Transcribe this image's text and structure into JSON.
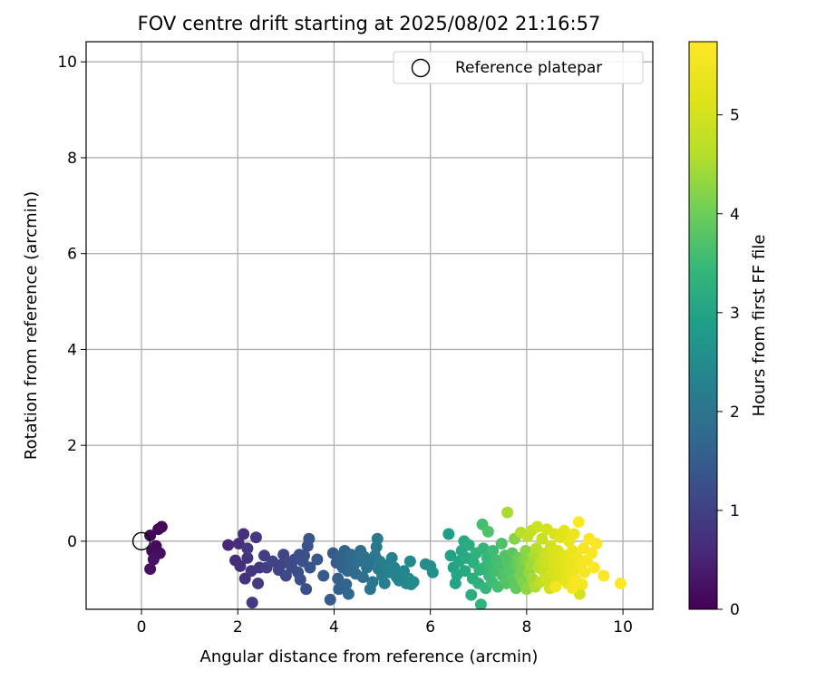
{
  "chart_data": {
    "type": "scatter",
    "title": "FOV centre drift starting at 2025/08/02 21:16:57",
    "xlabel": "Angular distance from reference (arcmin)",
    "ylabel": "Rotation from reference (arcmin)",
    "xlim": [
      -1.15,
      10.62
    ],
    "ylim": [
      -1.42,
      10.42
    ],
    "xticks": [
      0,
      2,
      4,
      6,
      8,
      10
    ],
    "yticks": [
      0,
      2,
      4,
      6,
      8,
      10
    ],
    "grid": true,
    "legend": {
      "position": "top-right",
      "entries": [
        "Reference platepar"
      ]
    },
    "reference_point": {
      "name": "Reference platepar",
      "x": 0,
      "y": 0,
      "marker": "hollow-circle"
    },
    "colorbar": {
      "label": "Hours from first FF file",
      "colormap": "viridis",
      "range": [
        0,
        5.74
      ],
      "ticks": [
        0,
        1,
        2,
        3,
        4,
        5
      ]
    },
    "series": [
      {
        "points": [
          [
            0.18,
            0.12,
            0.05
          ],
          [
            0.42,
            0.3,
            0.08
          ],
          [
            0.35,
            0.25,
            0.1
          ],
          [
            0.3,
            -0.1,
            0.13
          ],
          [
            0.22,
            -0.2,
            0.15
          ],
          [
            0.28,
            -0.3,
            0.18
          ],
          [
            0.38,
            -0.25,
            0.2
          ],
          [
            0.18,
            -0.58,
            0.22
          ],
          [
            0.25,
            -0.38,
            0.25
          ],
          [
            1.8,
            -0.08,
            0.6
          ],
          [
            1.95,
            -0.4,
            0.65
          ],
          [
            2.02,
            -0.05,
            0.68
          ],
          [
            2.12,
            0.15,
            0.7
          ],
          [
            2.05,
            -0.52,
            0.72
          ],
          [
            2.15,
            -0.78,
            0.75
          ],
          [
            2.2,
            -0.35,
            0.78
          ],
          [
            2.28,
            -0.62,
            0.8
          ],
          [
            2.38,
            0.08,
            0.82
          ],
          [
            2.45,
            -0.55,
            0.85
          ],
          [
            2.3,
            -1.28,
            0.9
          ],
          [
            2.42,
            -0.88,
            0.88
          ],
          [
            2.2,
            -0.15,
            0.87
          ],
          [
            2.55,
            -0.3,
            0.95
          ],
          [
            2.6,
            -0.55,
            1.0
          ],
          [
            2.72,
            -0.42,
            1.05
          ],
          [
            2.85,
            -0.6,
            1.08
          ],
          [
            2.95,
            -0.28,
            1.1
          ],
          [
            3.0,
            -0.72,
            1.12
          ],
          [
            3.05,
            -0.45,
            1.15
          ],
          [
            3.12,
            -0.55,
            1.18
          ],
          [
            3.18,
            -0.38,
            1.2
          ],
          [
            3.25,
            -0.65,
            1.22
          ],
          [
            3.3,
            -0.8,
            1.25
          ],
          [
            3.35,
            -0.42,
            1.27
          ],
          [
            3.38,
            -0.3,
            1.3
          ],
          [
            3.45,
            -0.1,
            1.32
          ],
          [
            3.5,
            -0.55,
            1.35
          ],
          [
            3.48,
            0.05,
            1.38
          ],
          [
            3.42,
            -1.0,
            1.28
          ],
          [
            3.28,
            -0.28,
            1.24
          ],
          [
            2.88,
            -0.5,
            1.06
          ],
          [
            3.65,
            -0.38,
            1.4
          ],
          [
            3.78,
            -0.72,
            1.45
          ],
          [
            3.92,
            -1.22,
            1.48
          ],
          [
            3.98,
            -0.25,
            1.5
          ],
          [
            4.05,
            -0.45,
            1.52
          ],
          [
            4.08,
            -0.78,
            1.55
          ],
          [
            4.1,
            -1.0,
            1.58
          ],
          [
            4.15,
            -0.32,
            1.6
          ],
          [
            4.18,
            -0.55,
            1.62
          ],
          [
            4.22,
            -0.2,
            1.65
          ],
          [
            4.25,
            -0.9,
            1.67
          ],
          [
            4.28,
            -0.62,
            1.7
          ],
          [
            4.3,
            -1.1,
            1.72
          ],
          [
            4.32,
            -0.38,
            1.75
          ],
          [
            4.35,
            -0.28,
            1.78
          ],
          [
            4.4,
            -0.52,
            1.8
          ],
          [
            4.45,
            -0.68,
            1.82
          ],
          [
            4.5,
            -0.42,
            1.85
          ],
          [
            4.55,
            -0.2,
            1.87
          ],
          [
            4.6,
            -0.75,
            1.9
          ],
          [
            4.62,
            -0.32,
            1.92
          ],
          [
            4.68,
            -0.55,
            1.95
          ],
          [
            4.72,
            -0.45,
            1.97
          ],
          [
            4.75,
            -1.0,
            2.0
          ],
          [
            4.8,
            -0.85,
            2.02
          ],
          [
            4.85,
            -0.3,
            2.05
          ],
          [
            4.88,
            -0.12,
            2.07
          ],
          [
            4.9,
            0.05,
            2.1
          ],
          [
            4.92,
            -0.58,
            2.12
          ],
          [
            4.95,
            -0.42,
            2.15
          ],
          [
            5.0,
            -0.72,
            2.18
          ],
          [
            5.05,
            -0.88,
            2.2
          ],
          [
            5.1,
            -0.5,
            2.22
          ],
          [
            5.15,
            -0.65,
            2.25
          ],
          [
            5.2,
            -0.35,
            2.27
          ],
          [
            5.25,
            -0.55,
            2.3
          ],
          [
            5.3,
            -0.75,
            2.32
          ],
          [
            5.35,
            -0.82,
            2.35
          ],
          [
            5.45,
            -0.62,
            2.38
          ],
          [
            5.5,
            -0.88,
            2.4
          ],
          [
            5.55,
            -0.78,
            2.42
          ],
          [
            5.6,
            -0.9,
            2.45
          ],
          [
            5.65,
            -0.85,
            2.48
          ],
          [
            5.58,
            -0.42,
            2.43
          ],
          [
            5.9,
            -0.48,
            2.5
          ],
          [
            6.0,
            -0.52,
            2.55
          ],
          [
            6.05,
            -0.65,
            2.58
          ],
          [
            6.38,
            0.15,
            2.9
          ],
          [
            6.42,
            -0.3,
            2.95
          ],
          [
            6.48,
            -0.55,
            2.98
          ],
          [
            6.52,
            -0.88,
            3.0
          ],
          [
            6.55,
            -0.7,
            3.02
          ],
          [
            6.6,
            -0.42,
            3.05
          ],
          [
            6.65,
            -0.2,
            3.08
          ],
          [
            6.7,
            0.0,
            3.1
          ],
          [
            6.72,
            -0.62,
            3.12
          ],
          [
            6.75,
            -0.35,
            3.15
          ],
          [
            6.8,
            -0.08,
            3.18
          ],
          [
            6.85,
            -1.12,
            3.2
          ],
          [
            6.88,
            -0.78,
            3.22
          ],
          [
            6.9,
            -0.45,
            3.25
          ],
          [
            6.95,
            -0.25,
            3.28
          ],
          [
            7.0,
            -0.88,
            3.3
          ],
          [
            7.02,
            -0.6,
            3.32
          ],
          [
            7.05,
            -1.32,
            3.35
          ],
          [
            7.08,
            0.35,
            3.6
          ],
          [
            7.1,
            -0.15,
            3.38
          ],
          [
            7.12,
            -0.55,
            3.4
          ],
          [
            7.15,
            -0.98,
            3.42
          ],
          [
            7.18,
            -0.35,
            3.45
          ],
          [
            7.2,
            0.2,
            3.7
          ],
          [
            7.22,
            -0.72,
            3.47
          ],
          [
            7.25,
            -0.52,
            3.5
          ],
          [
            7.28,
            -0.85,
            3.52
          ],
          [
            7.3,
            -0.2,
            3.55
          ],
          [
            7.35,
            -0.62,
            3.58
          ],
          [
            7.38,
            -0.4,
            3.6
          ],
          [
            7.4,
            -0.95,
            3.62
          ],
          [
            7.45,
            -0.55,
            3.65
          ],
          [
            7.48,
            -0.05,
            3.68
          ],
          [
            7.5,
            -0.72,
            3.7
          ],
          [
            7.55,
            -0.3,
            3.72
          ],
          [
            7.58,
            -0.88,
            3.75
          ],
          [
            7.6,
            0.6,
            4.5
          ],
          [
            7.62,
            -0.45,
            3.78
          ],
          [
            7.65,
            -0.6,
            3.8
          ],
          [
            7.7,
            -0.25,
            3.82
          ],
          [
            7.72,
            -0.8,
            3.85
          ],
          [
            7.75,
            0.05,
            4.2
          ],
          [
            7.78,
            -0.98,
            3.9
          ],
          [
            7.8,
            -0.5,
            3.95
          ],
          [
            7.82,
            -0.35,
            4.0
          ],
          [
            7.85,
            -0.72,
            4.05
          ],
          [
            7.88,
            0.18,
            4.6
          ],
          [
            7.9,
            -0.55,
            4.1
          ],
          [
            7.92,
            -0.85,
            4.15
          ],
          [
            7.95,
            -0.4,
            4.2
          ],
          [
            7.98,
            -0.2,
            4.25
          ],
          [
            8.0,
            -1.0,
            4.3
          ],
          [
            8.02,
            0.1,
            4.7
          ],
          [
            8.05,
            -0.65,
            4.35
          ],
          [
            8.08,
            -0.48,
            4.4
          ],
          [
            8.1,
            0.22,
            4.8
          ],
          [
            8.12,
            -0.78,
            4.45
          ],
          [
            8.15,
            -0.3,
            4.5
          ],
          [
            8.18,
            -0.95,
            4.55
          ],
          [
            8.2,
            -0.15,
            4.6
          ],
          [
            8.22,
            0.3,
            4.9
          ],
          [
            8.25,
            -0.55,
            4.65
          ],
          [
            8.28,
            -0.85,
            4.7
          ],
          [
            8.3,
            -0.4,
            4.75
          ],
          [
            8.32,
            0.05,
            4.85
          ],
          [
            8.35,
            -0.62,
            4.8
          ],
          [
            8.38,
            -0.25,
            4.88
          ],
          [
            8.4,
            -0.8,
            4.9
          ],
          [
            8.42,
            0.25,
            5.0
          ],
          [
            8.45,
            -0.45,
            4.95
          ],
          [
            8.48,
            -0.98,
            4.97
          ],
          [
            8.5,
            -0.1,
            5.0
          ],
          [
            8.52,
            -0.68,
            5.02
          ],
          [
            8.55,
            -0.32,
            5.05
          ],
          [
            8.58,
            0.15,
            5.1
          ],
          [
            8.6,
            -0.5,
            5.08
          ],
          [
            8.62,
            -0.85,
            5.1
          ],
          [
            8.65,
            -0.2,
            5.12
          ],
          [
            8.68,
            -0.62,
            5.15
          ],
          [
            8.7,
            0.08,
            5.18
          ],
          [
            8.72,
            -0.4,
            5.2
          ],
          [
            8.75,
            -0.78,
            5.22
          ],
          [
            8.78,
            0.22,
            5.25
          ],
          [
            8.8,
            -0.3,
            5.27
          ],
          [
            8.82,
            -0.55,
            5.3
          ],
          [
            8.85,
            -0.88,
            5.32
          ],
          [
            8.88,
            0.0,
            5.35
          ],
          [
            8.9,
            -0.45,
            5.37
          ],
          [
            8.92,
            -0.7,
            5.4
          ],
          [
            8.95,
            -0.2,
            5.42
          ],
          [
            8.98,
            0.15,
            5.45
          ],
          [
            9.0,
            -0.6,
            5.47
          ],
          [
            9.02,
            -0.82,
            5.5
          ],
          [
            9.05,
            -0.35,
            5.52
          ],
          [
            9.08,
            0.4,
            5.7
          ],
          [
            9.1,
            -1.1,
            5.0
          ],
          [
            9.12,
            -0.5,
            5.55
          ],
          [
            9.15,
            -0.9,
            5.57
          ],
          [
            9.18,
            -0.15,
            5.6
          ],
          [
            9.2,
            -0.65,
            5.62
          ],
          [
            9.25,
            -0.4,
            5.64
          ],
          [
            9.3,
            0.05,
            5.66
          ],
          [
            9.35,
            -0.25,
            5.68
          ],
          [
            9.4,
            -0.55,
            5.7
          ],
          [
            9.45,
            -0.05,
            5.72
          ],
          [
            9.6,
            -0.72,
            5.73
          ],
          [
            9.95,
            -0.88,
            5.74
          ],
          [
            8.95,
            -0.98,
            5.6
          ],
          [
            8.6,
            -0.95,
            5.55
          ],
          [
            9.0,
            -0.85,
            5.65
          ]
        ]
      }
    ]
  }
}
